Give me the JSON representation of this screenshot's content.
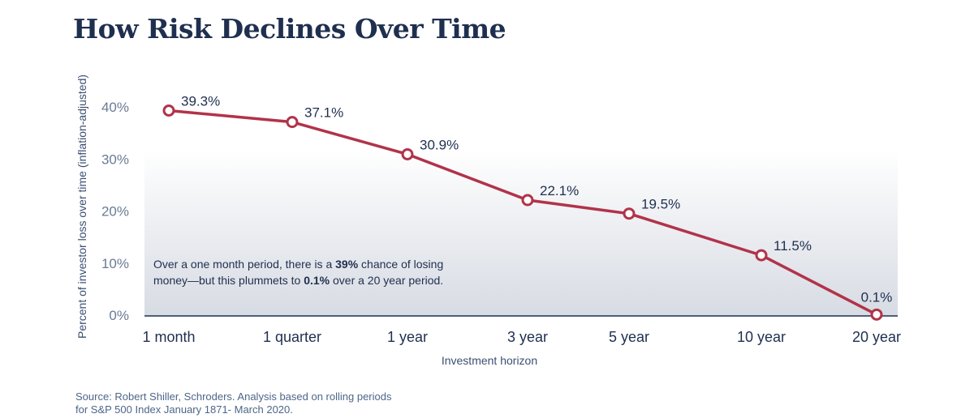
{
  "title": "How Risk Declines Over Time",
  "annotation": {
    "part1": "Over a one month period, there is a ",
    "bold1": "39%",
    "part2": " chance of losing money—but this plummets to ",
    "bold2": "0.1%",
    "part3": " over a 20 year period."
  },
  "source": "Source: Robert Shiller, Schroders. Analysis based on rolling periods for S&P 500 Index January 1871- March 2020.",
  "colors": {
    "line": "#b1334a",
    "text": "#1f2f4f",
    "axis_text": "#6a7b95"
  },
  "chart_data": {
    "type": "line",
    "categories": [
      "1 month",
      "1 quarter",
      "1 year",
      "3 year",
      "5 year",
      "10 year",
      "20 year"
    ],
    "values": [
      39.3,
      37.1,
      30.9,
      22.1,
      19.5,
      11.5,
      0.1
    ],
    "data_labels": [
      "39.3%",
      "37.1%",
      "30.9%",
      "22.1%",
      "19.5%",
      "11.5%",
      "0.1%"
    ],
    "xlabel": "Investment horizon",
    "ylabel": "Percent of investor loss over time (inflation-adjusted)",
    "ylim": [
      0,
      40
    ],
    "yticks": [
      0,
      10,
      20,
      30,
      40
    ],
    "ytick_labels": [
      "0%",
      "10%",
      "20%",
      "30%",
      "40%"
    ],
    "grid": false,
    "legend": "none"
  }
}
